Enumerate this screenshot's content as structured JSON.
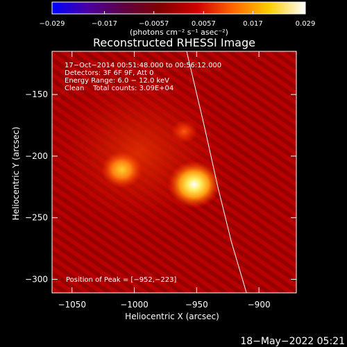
{
  "chart_data": {
    "type": "heatmap",
    "title": "Reconstructed RHESSI Image",
    "xlabel": "Heliocentric X (arcsec)",
    "ylabel": "Heliocentric Y (arcsec)",
    "xlim": [
      -1066,
      -870
    ],
    "ylim": [
      -311,
      -115
    ],
    "x_ticks": [
      -1050,
      -1000,
      -950,
      -900
    ],
    "y_ticks": [
      -150,
      -200,
      -250,
      -300
    ],
    "x_tick_labels": [
      "−1050",
      "−1000",
      "−950",
      "−900"
    ],
    "y_tick_labels": [
      "−150",
      "−200",
      "−250",
      "−300"
    ],
    "colorbar": {
      "range": [
        -0.029,
        0.029
      ],
      "ticks": [
        -0.029,
        -0.017,
        -0.0057,
        0.0057,
        0.017,
        0.029
      ],
      "tick_labels": [
        "−0.029",
        "−0.017",
        "−0.0057",
        "0.0057",
        "0.017",
        "0.029"
      ],
      "colormap": [
        "#0000ff",
        "#4a00a0",
        "#600040",
        "#800000",
        "#d00000",
        "#ff6600",
        "#ffcc00",
        "#ffffff"
      ]
    },
    "units_label": "(photons cm⁻² s⁻¹ asec⁻²)",
    "annotations": {
      "line1": "17−Oct−2014 00:51:48.000 to 00:56:12.000",
      "line2": "Detectors: 3F 6F 9F, Att 0",
      "line3": "Energy Range: 6.0 − 12.0 keV",
      "line4": "Clean    Total counts: 3.09E+04",
      "peak": "Position of Peak = [−952,−223]"
    },
    "sources": [
      {
        "x": -952,
        "y": -223,
        "value": 0.029
      },
      {
        "x": -1010,
        "y": -211,
        "value": 0.019
      },
      {
        "x": -960,
        "y": -180,
        "value": 0.006
      }
    ],
    "limb_curve": [
      [
        -958,
        -115
      ],
      [
        -944,
        -175
      ],
      [
        -933,
        -225
      ],
      [
        -922,
        -270
      ],
      [
        -910,
        -311
      ]
    ],
    "background_color": "#b80000"
  },
  "footer": {
    "timestamp": "18−May−2022 05:21"
  }
}
